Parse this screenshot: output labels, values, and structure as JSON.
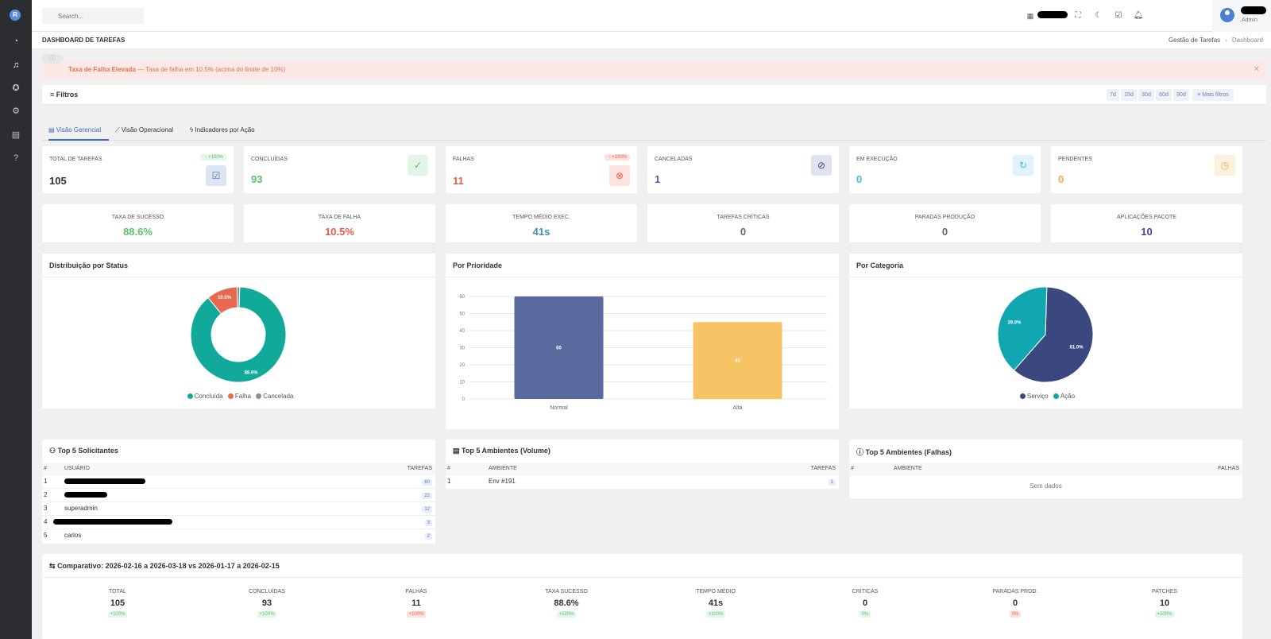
{
  "colors": {
    "success": "#59c36a",
    "danger": "#f05a44",
    "primary": "#4a5fa4",
    "info": "#49b6e6",
    "warning": "#f2a94b",
    "teal": "#11a99a",
    "navy": "#3b4880"
  },
  "topbar": {
    "search_placeholder": "Search...",
    "user_role": "Admin"
  },
  "page": {
    "title": "DASHBOARD DE TAREFAS",
    "breadcrumb": [
      "Gestão de Tarefas",
      "Dashboard"
    ]
  },
  "alert": {
    "title": "Taxa de Falha Elevada",
    "message": " — Taxa de falha em 10.5% (acima do limite de 10%)"
  },
  "filters": {
    "title": "Filtros",
    "ranges": [
      "7d",
      "15d",
      "30d",
      "60d",
      "90d"
    ],
    "more": "Mais filtros"
  },
  "tabs": [
    "Visão Gerencial",
    "Visão Operacional",
    "Indicadores por Ação"
  ],
  "kpis": [
    {
      "label": "TOTAL DE TAREFAS",
      "value": "105",
      "badge": "↑ +100%"
    },
    {
      "label": "CONCLUÍDAS",
      "value": "93"
    },
    {
      "label": "FALHAS",
      "value": "11",
      "badge": "↑ +100%"
    },
    {
      "label": "CANCELADAS",
      "value": "1"
    },
    {
      "label": "EM EXECUÇÃO",
      "value": "0"
    },
    {
      "label": "PENDENTES",
      "value": "0"
    }
  ],
  "metrics": [
    {
      "label": "TAXA DE SUCESSO",
      "value": "88.6%"
    },
    {
      "label": "TAXA DE FALHA",
      "value": "10.5%"
    },
    {
      "label": "TEMPO MÉDIO EXEC.",
      "value": "41s"
    },
    {
      "label": "TAREFAS CRÍTICAS",
      "value": "0"
    },
    {
      "label": "PARADAS PRODUÇÃO",
      "value": "0"
    },
    {
      "label": "APLICAÇÕES PACOTE",
      "value": "10"
    }
  ],
  "chart_data": [
    {
      "type": "pie",
      "title": "Distribuição por Status",
      "categories": [
        "Concluída",
        "Falha",
        "Cancelada"
      ],
      "values": [
        88.6,
        10.5,
        0.9
      ],
      "labels": [
        "88.6%",
        "10.5%",
        ""
      ],
      "legend": "bottom",
      "donut": true
    },
    {
      "type": "bar",
      "title": "Por Prioridade",
      "categories": [
        "Normal",
        "Alta"
      ],
      "values": [
        60,
        45
      ],
      "labels": [
        "60",
        "45"
      ],
      "yticks": [
        "0",
        "10",
        "20",
        "30",
        "40",
        "50",
        "60"
      ],
      "ylim": [
        0,
        60
      ],
      "grid": true
    },
    {
      "type": "pie",
      "title": "Por Categoria",
      "categories": [
        "Serviço",
        "Ação"
      ],
      "values": [
        61.0,
        39.0
      ],
      "labels": [
        "61.0%",
        "39.0%"
      ],
      "legend": "bottom",
      "donut": false
    }
  ],
  "top_requesters": {
    "title": "Top 5 Solicitantes",
    "headers": [
      "#",
      "USUÁRIO",
      "TAREFAS"
    ],
    "rows": [
      {
        "rank": "1",
        "user": "",
        "count": "60"
      },
      {
        "rank": "2",
        "user": "",
        "count": "22"
      },
      {
        "rank": "3",
        "user": "superadmin",
        "count": "12"
      },
      {
        "rank": "4",
        "user": "",
        "count": "3"
      },
      {
        "rank": "5",
        "user": "carlos",
        "count": "2"
      }
    ]
  },
  "top_env_volume": {
    "title": "Top 5 Ambientes (Volume)",
    "headers": [
      "#",
      "AMBIENTE",
      "TAREFAS"
    ],
    "rows": [
      {
        "rank": "1",
        "env": "Env #191",
        "count": "1"
      }
    ]
  },
  "top_env_failures": {
    "title": "Top 5 Ambientes (Falhas)",
    "headers": [
      "#",
      "AMBIENTE",
      "FALHAS"
    ],
    "empty": "Sem dados"
  },
  "comparison": {
    "title": "Comparativo: 2026-02-16 a 2026-03-18 vs 2026-01-17 a 2026-02-15",
    "items": [
      {
        "label": "TOTAL",
        "value": "105",
        "delta": "+100%"
      },
      {
        "label": "CONCLUÍDAS",
        "value": "93",
        "delta": "+100%"
      },
      {
        "label": "FALHAS",
        "value": "11",
        "delta": "+100%"
      },
      {
        "label": "TAXA SUCESSO",
        "value": "88.6%",
        "delta": "+100%"
      },
      {
        "label": "TEMPO MÉDIO",
        "value": "41s",
        "delta": "+100%"
      },
      {
        "label": "CRÍTICAS",
        "value": "0",
        "delta": "0%"
      },
      {
        "label": "PARADAS PROD.",
        "value": "0",
        "delta": "0%"
      },
      {
        "label": "PATCHES",
        "value": "10",
        "delta": "+100%"
      }
    ]
  }
}
